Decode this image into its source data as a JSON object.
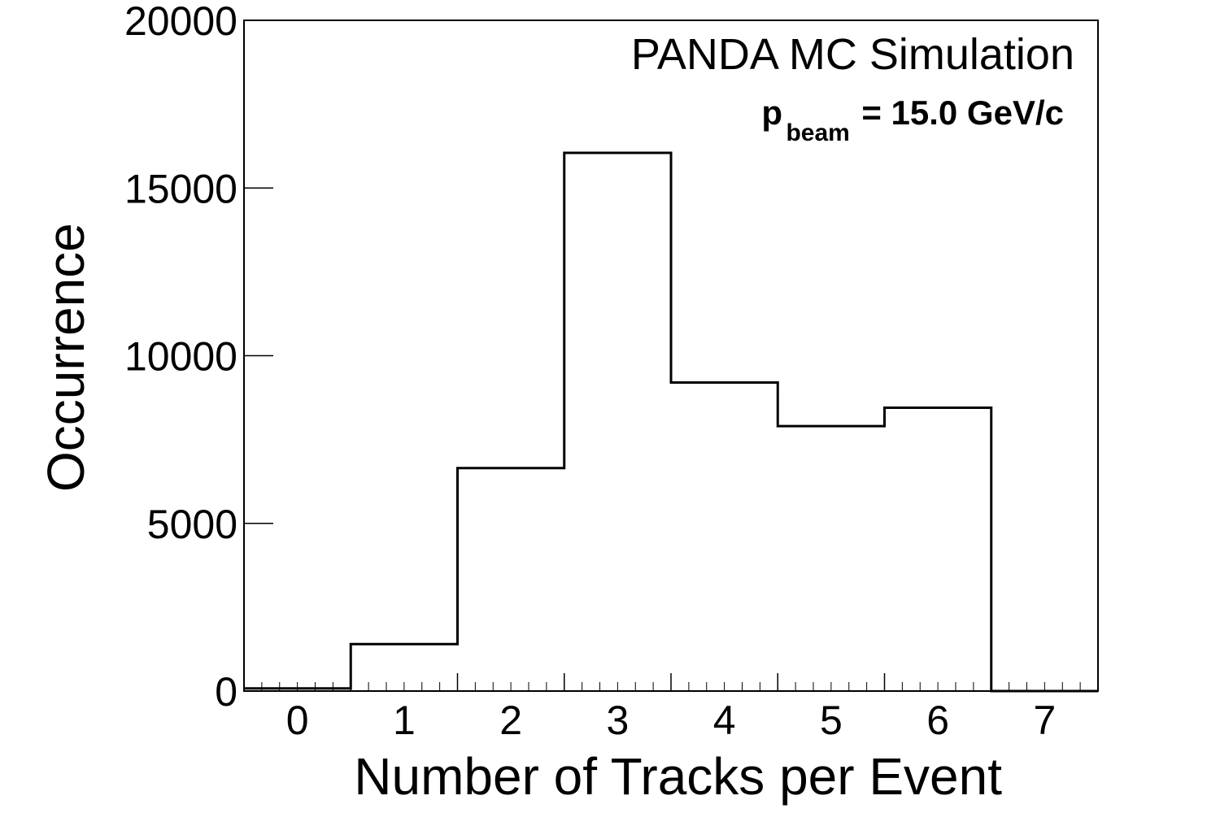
{
  "chart_data": {
    "type": "bar",
    "style": "step-histogram",
    "categories": [
      "0",
      "1",
      "2",
      "3",
      "4",
      "5",
      "6",
      "7"
    ],
    "x": [
      0,
      1,
      2,
      3,
      4,
      5,
      6,
      7
    ],
    "values": [
      80,
      1400,
      6650,
      16050,
      9200,
      7900,
      8450,
      0
    ],
    "xlabel": "Number of Tracks per Event",
    "ylabel": "Occurrence",
    "xlim": [
      -0.5,
      7.5
    ],
    "ylim": [
      0,
      20000
    ],
    "yticks": [
      "0",
      "5000",
      "10000",
      "15000",
      "20000"
    ],
    "ytick_values": [
      0,
      5000,
      10000,
      15000,
      20000
    ],
    "xticks": [
      "0",
      "1",
      "2",
      "3",
      "4",
      "5",
      "6",
      "7"
    ],
    "grid": false,
    "legend": "none",
    "annotations": {
      "title": "PANDA MC Simulation",
      "momentum_symbol": "p",
      "momentum_subscript": "beam",
      "momentum_value": "= 15.0 GeV/c"
    },
    "colors": {
      "line": "#000000",
      "background": "#ffffff"
    }
  }
}
